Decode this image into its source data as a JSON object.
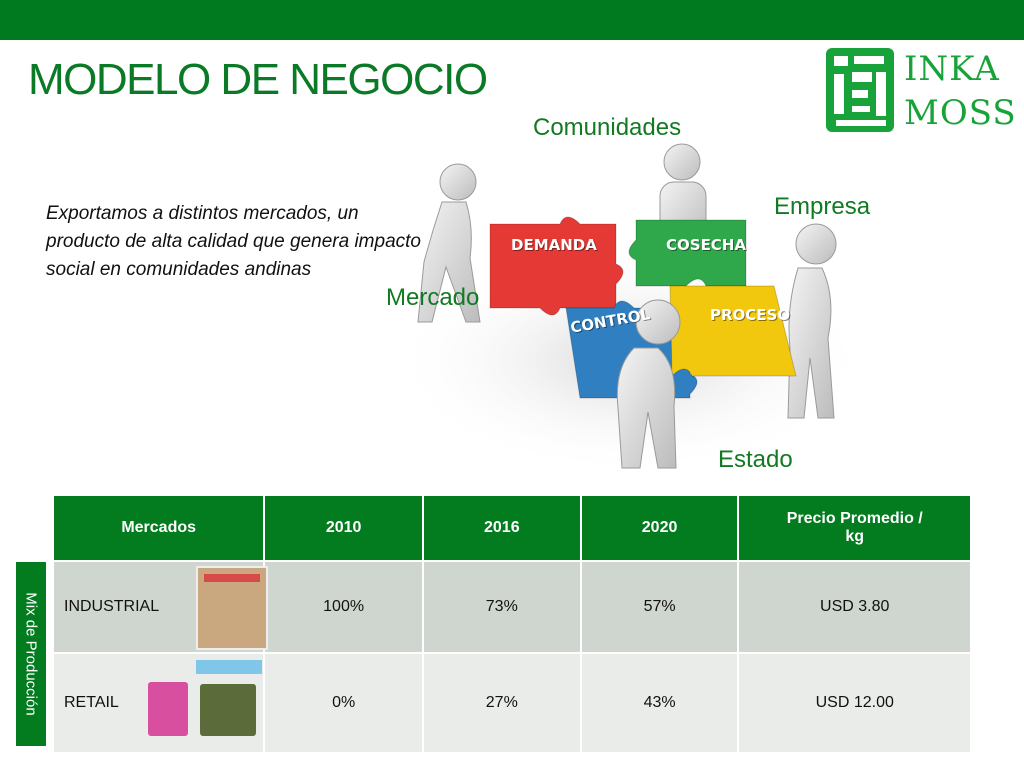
{
  "slide": {
    "title": "MODELO DE NEGOCIO",
    "description": "Exportamos a distintos mercados,  un producto de  alta calidad que genera impacto social en comunidades andinas"
  },
  "logo": {
    "line1": "INKA",
    "line2": "MOSS"
  },
  "diagram": {
    "stakeholders": {
      "top": "Comunidades",
      "right": "Empresa",
      "left": "Mercado",
      "bottom": "Estado"
    },
    "pieces": {
      "red": "DEMANDA",
      "green": "COSECHA",
      "blue": "CONTROL",
      "yellow": "PROCESO"
    }
  },
  "table": {
    "headers": [
      "Mercados",
      "2010",
      "2016",
      "2020",
      "Precio Promedio / kg"
    ],
    "rows": [
      {
        "mercado": "INDUSTRIAL",
        "y2010": "100%",
        "y2016": "73%",
        "y2020": "57%",
        "precio": "USD 3.80"
      },
      {
        "mercado": "RETAIL",
        "y2010": "0%",
        "y2016": "27%",
        "y2020": "43%",
        "precio": "USD 12.00"
      }
    ],
    "side_label": "Mix  de Producción"
  },
  "colors": {
    "brand_green": "#007a1f",
    "header_green": "#027c1f",
    "puzzle_red": "#e53935",
    "puzzle_green": "#2ea84a",
    "puzzle_blue": "#2f7fc1",
    "puzzle_yellow": "#f2c80f"
  }
}
